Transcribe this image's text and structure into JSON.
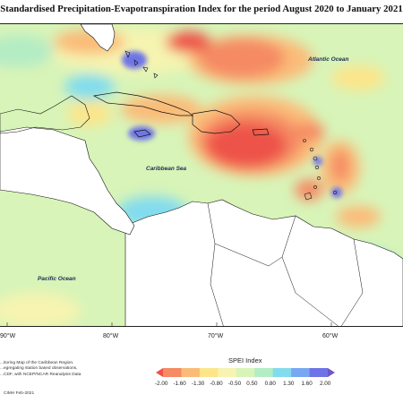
{
  "title": "Standardised Precipitation-Evapotranspiration Index for the period August 2020 to January 2021",
  "map": {
    "ocean_labels": {
      "atlantic": "Atlantic Ocean",
      "caribbean": "Caribbean Sea",
      "pacific": "Pacific Ocean"
    },
    "longitude_labels": [
      "90°W",
      "80°W",
      "70°W",
      "60°W"
    ]
  },
  "legend": {
    "title": "SPEI Index",
    "ticks": [
      "-2.00",
      "-1.60",
      "-1.30",
      "-0.80",
      "-0.50",
      "0.50",
      "0.80",
      "1.30",
      "1.60",
      "2.00"
    ],
    "colors": [
      "#ee5348",
      "#f58a64",
      "#fbbb78",
      "#fde58a",
      "#f6f4b0",
      "#d8f4b8",
      "#b4ecc4",
      "#82dcee",
      "#78a8f2",
      "#6e74e6",
      "#7056c6"
    ]
  },
  "credit": {
    "lines": [
      "...itoring Map of the Caribbean Region.",
      "...egregating station based observations,",
      "...CDF, with NCEP/NCAR Reanalysis Data"
    ],
    "date": "CIMH Feb-2021"
  }
}
